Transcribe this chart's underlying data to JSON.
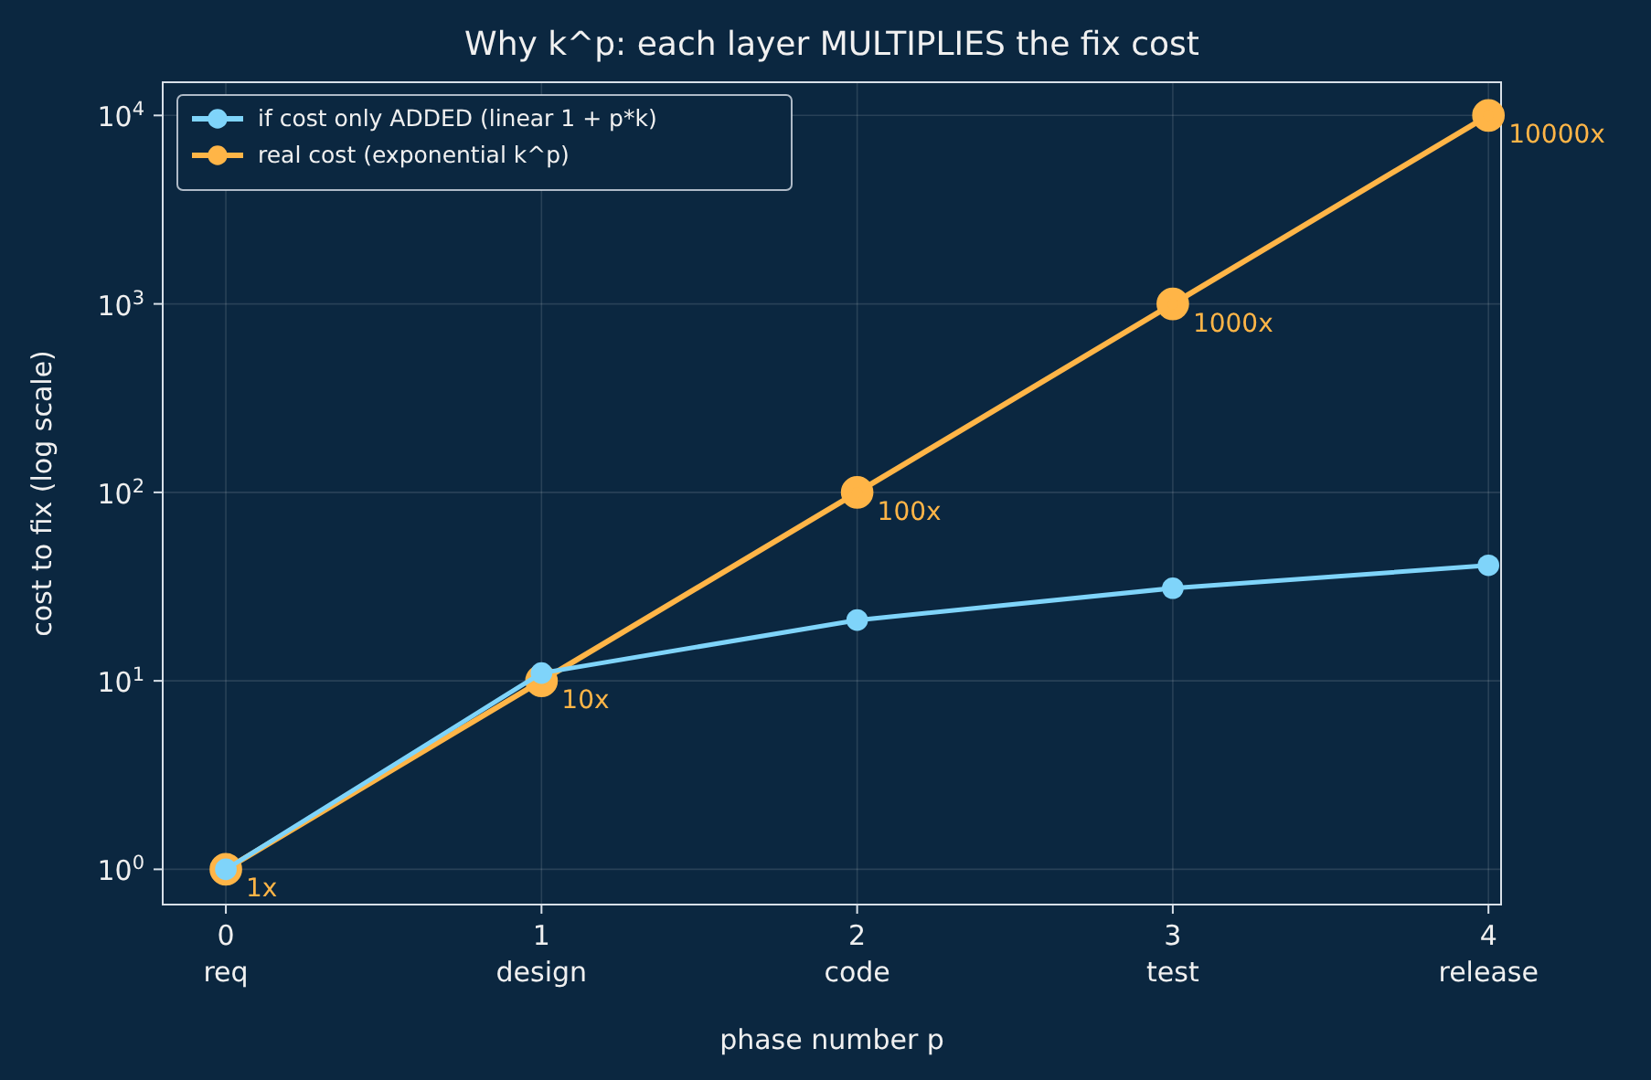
{
  "chart_data": {
    "type": "line",
    "title": "Why k^p: each layer MULTIPLIES the fix cost",
    "xlabel": "phase number  p",
    "ylabel": "cost to fix  (log scale)",
    "x": [
      0,
      1,
      2,
      3,
      4
    ],
    "series": [
      {
        "name": "if cost only ADDED  (linear  1 + p*k)",
        "color": "#7fd4fa",
        "values": [
          1,
          11,
          21,
          31,
          41
        ]
      },
      {
        "name": "real cost  (exponential  k^p)",
        "color": "#ffb547",
        "values": [
          1,
          10,
          100,
          1000,
          10000
        ],
        "value_labels": [
          "1x",
          "10x",
          "100x",
          "1000x",
          "10000x"
        ]
      }
    ],
    "xlim": [
      -0.2,
      4.04
    ],
    "ylim": [
      0.65,
      15000
    ],
    "xticks": [
      {
        "value": 0,
        "label": "0\nreq"
      },
      {
        "value": 1,
        "label": "1\ndesign"
      },
      {
        "value": 2,
        "label": "2\ncode"
      },
      {
        "value": 3,
        "label": "3\ntest"
      },
      {
        "value": 4,
        "label": "4\nrelease"
      }
    ],
    "yticks": [
      {
        "value": 1,
        "label": "10$^{0}$"
      },
      {
        "value": 10,
        "label": "10$^{1}$"
      },
      {
        "value": 100,
        "label": "10$^{2}$"
      },
      {
        "value": 1000,
        "label": "10$^{3}$"
      },
      {
        "value": 10000,
        "label": "10$^{4}$"
      }
    ],
    "log": "y",
    "grid": true,
    "legend": "top left",
    "marker": "circle",
    "line_style": "solid"
  }
}
